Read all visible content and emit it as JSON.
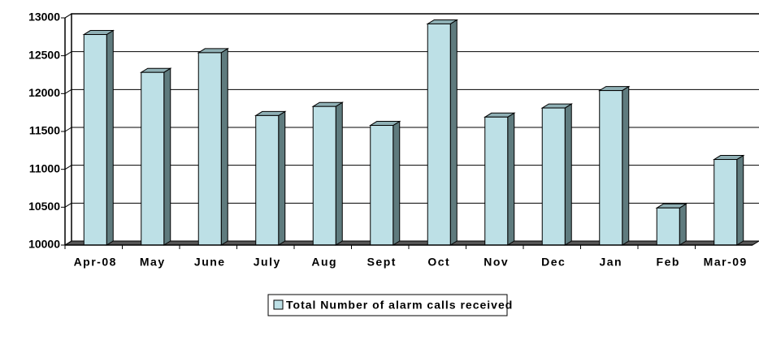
{
  "chart_data": {
    "type": "bar3d",
    "categories": [
      "Apr-08",
      "May",
      "June",
      "July",
      "Aug",
      "Sept",
      "Oct",
      "Nov",
      "Dec",
      "Jan",
      "Feb",
      "Mar-09"
    ],
    "series": [
      {
        "name": "Total Number of alarm calls received",
        "color": "#bde0e6",
        "values": [
          12780,
          12280,
          12540,
          11710,
          11830,
          11580,
          12920,
          11690,
          11810,
          12040,
          10490,
          11130
        ]
      }
    ],
    "ylim": [
      10000,
      13000
    ],
    "yticks": [
      10000,
      10500,
      11000,
      11500,
      12000,
      12500,
      13000
    ],
    "grid": true,
    "legend": "bottom"
  }
}
